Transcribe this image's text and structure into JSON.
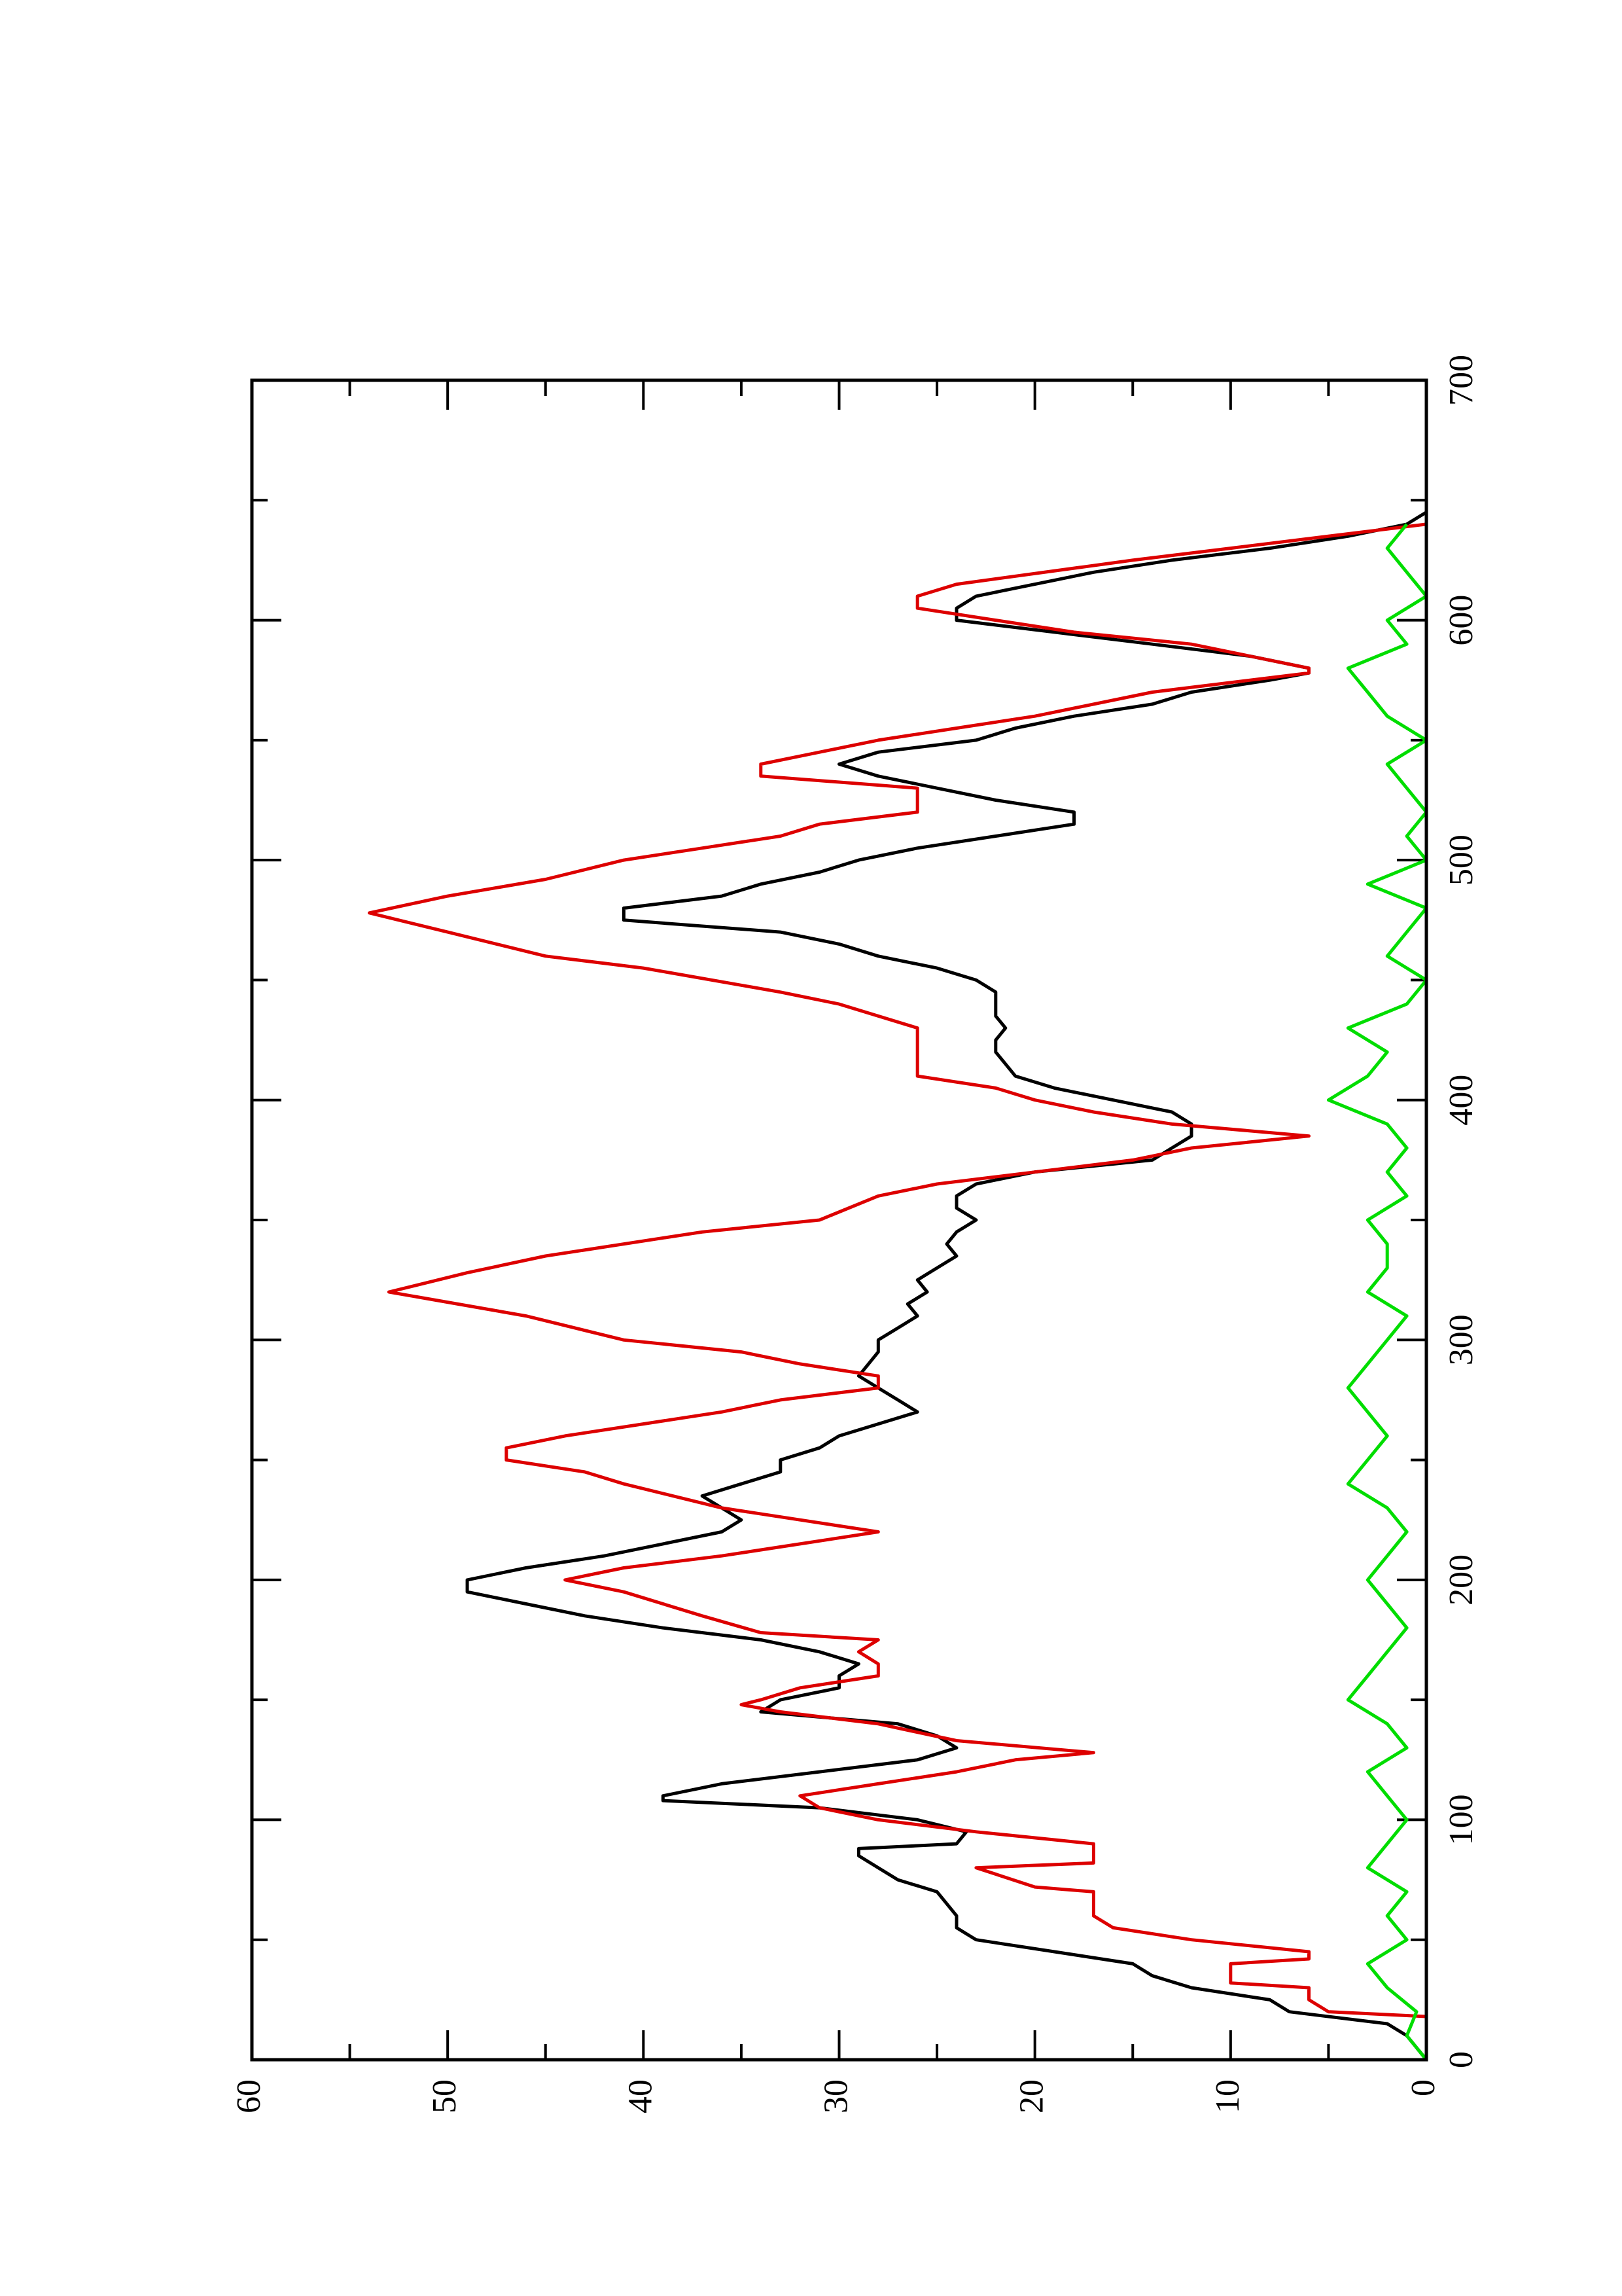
{
  "chart_data": {
    "type": "line",
    "rotated": true,
    "xlim": [
      0,
      700
    ],
    "xticks": [
      0,
      100,
      200,
      300,
      400,
      500,
      600,
      700
    ],
    "ylim": [
      0,
      60
    ],
    "yticks": [
      0,
      10,
      20,
      30,
      40,
      50,
      60
    ],
    "series": [
      {
        "color": "#000000",
        "x": [
          0,
          10,
          15,
          20,
          25,
          30,
          35,
          40,
          45,
          50,
          55,
          60,
          65,
          70,
          75,
          80,
          85,
          88,
          90,
          95,
          100,
          105,
          108,
          110,
          115,
          120,
          125,
          130,
          135,
          140,
          145,
          150,
          155,
          160,
          165,
          170,
          175,
          180,
          185,
          190,
          195,
          200,
          205,
          210,
          215,
          220,
          225,
          230,
          235,
          240,
          245,
          250,
          255,
          260,
          265,
          270,
          275,
          280,
          285,
          290,
          295,
          300,
          305,
          310,
          315,
          320,
          325,
          330,
          335,
          340,
          345,
          350,
          355,
          360,
          365,
          370,
          375,
          380,
          385,
          390,
          395,
          400,
          405,
          410,
          415,
          420,
          425,
          430,
          435,
          440,
          445,
          450,
          455,
          460,
          465,
          470,
          475,
          480,
          485,
          490,
          495,
          500,
          505,
          510,
          515,
          520,
          525,
          530,
          535,
          540,
          545,
          550,
          555,
          560,
          565,
          570,
          575,
          578,
          580,
          585,
          590,
          595,
          600,
          605,
          610,
          615,
          620,
          625,
          630,
          635,
          640,
          645
        ],
        "values": [
          0,
          1,
          2,
          7,
          8,
          12,
          14,
          15,
          19,
          23,
          24,
          24,
          24.5,
          25,
          27,
          28,
          29,
          29,
          24,
          23.5,
          26,
          31,
          39,
          39,
          36,
          31,
          26,
          24,
          25,
          27,
          34,
          33,
          30,
          30,
          29,
          31,
          34,
          39,
          43,
          46,
          49,
          49,
          46,
          42,
          39,
          36,
          35,
          36,
          37,
          35,
          33,
          33,
          31,
          30,
          28,
          26,
          27,
          28,
          29,
          28.5,
          28,
          28,
          27,
          26,
          26.5,
          25.5,
          26,
          25,
          24,
          24.5,
          24,
          23,
          24,
          24,
          23,
          20,
          14,
          13,
          12,
          12,
          13,
          16,
          19,
          21,
          21.5,
          22,
          22,
          21.5,
          22,
          22,
          22,
          23,
          25,
          28,
          30,
          33,
          41,
          41,
          36,
          34,
          31,
          29,
          26,
          22,
          18,
          18,
          22,
          25,
          28,
          30,
          28,
          23,
          21,
          18,
          14,
          12,
          8,
          6,
          6,
          9,
          14,
          19,
          24,
          24,
          23,
          20,
          17,
          13,
          8,
          4,
          1,
          0
        ]
      },
      {
        "color": "#dd0000",
        "x": [
          0,
          18,
          20,
          25,
          30,
          32,
          40,
          42,
          45,
          50,
          55,
          60,
          70,
          72,
          80,
          82,
          90,
          95,
          100,
          105,
          110,
          115,
          120,
          125,
          128,
          133,
          140,
          145,
          148,
          150,
          155,
          160,
          165,
          170,
          175,
          178,
          185,
          195,
          200,
          205,
          210,
          215,
          220,
          225,
          230,
          240,
          245,
          250,
          255,
          260,
          265,
          270,
          275,
          280,
          285,
          290,
          295,
          300,
          310,
          320,
          328,
          335,
          345,
          350,
          360,
          365,
          370,
          375,
          380,
          385,
          390,
          395,
          400,
          405,
          410,
          430,
          440,
          445,
          455,
          460,
          470,
          478,
          485,
          492,
          500,
          505,
          510,
          515,
          520,
          530,
          535,
          540,
          545,
          550,
          555,
          560,
          570,
          578,
          580,
          590,
          595,
          600,
          605,
          610,
          615,
          625,
          630,
          640
        ],
        "values": [
          0,
          0,
          5,
          6,
          6,
          10,
          10,
          6,
          6,
          12,
          16,
          17,
          17,
          20,
          23,
          17,
          17,
          23,
          28,
          31,
          32,
          28,
          24,
          21,
          17,
          24,
          28,
          33,
          35,
          34,
          32,
          28,
          28,
          29,
          28,
          34,
          37,
          41,
          44,
          41,
          36,
          32,
          28,
          32,
          36,
          41,
          43,
          47,
          47,
          44,
          40,
          36,
          33,
          28,
          28,
          32,
          35,
          41,
          46,
          53,
          49,
          45,
          37,
          31,
          28,
          25,
          20,
          15,
          12,
          6,
          13,
          17,
          20,
          22,
          26,
          26,
          30,
          33,
          40,
          45,
          50,
          54,
          50,
          45,
          41,
          37,
          33,
          31,
          26,
          26,
          34,
          34,
          31,
          28,
          24,
          20,
          14,
          6,
          6,
          12,
          18,
          22,
          26,
          26,
          24,
          15,
          10,
          0
        ]
      },
      {
        "color": "#00dd00",
        "x": [
          0,
          10,
          20,
          30,
          40,
          50,
          60,
          70,
          80,
          90,
          100,
          110,
          120,
          130,
          140,
          150,
          160,
          170,
          180,
          190,
          200,
          210,
          220,
          230,
          240,
          250,
          260,
          270,
          280,
          290,
          300,
          310,
          320,
          330,
          340,
          350,
          360,
          370,
          380,
          390,
          400,
          410,
          420,
          430,
          440,
          450,
          460,
          470,
          480,
          490,
          500,
          510,
          520,
          530,
          540,
          550,
          560,
          570,
          580,
          590,
          600,
          610,
          620,
          630,
          640
        ],
        "values": [
          0,
          1,
          0.5,
          2,
          3,
          1,
          2,
          1,
          3,
          2,
          1,
          2,
          3,
          1,
          2,
          4,
          3,
          2,
          1,
          2,
          3,
          2,
          1,
          2,
          4,
          3,
          2,
          3,
          4,
          3,
          2,
          1,
          3,
          2,
          2,
          3,
          1,
          2,
          1,
          2,
          5,
          3,
          2,
          4,
          1,
          0,
          2,
          1,
          0,
          3,
          0,
          1,
          0,
          1,
          2,
          0,
          2,
          3,
          4,
          1,
          2,
          0,
          1,
          2,
          1
        ]
      }
    ]
  }
}
